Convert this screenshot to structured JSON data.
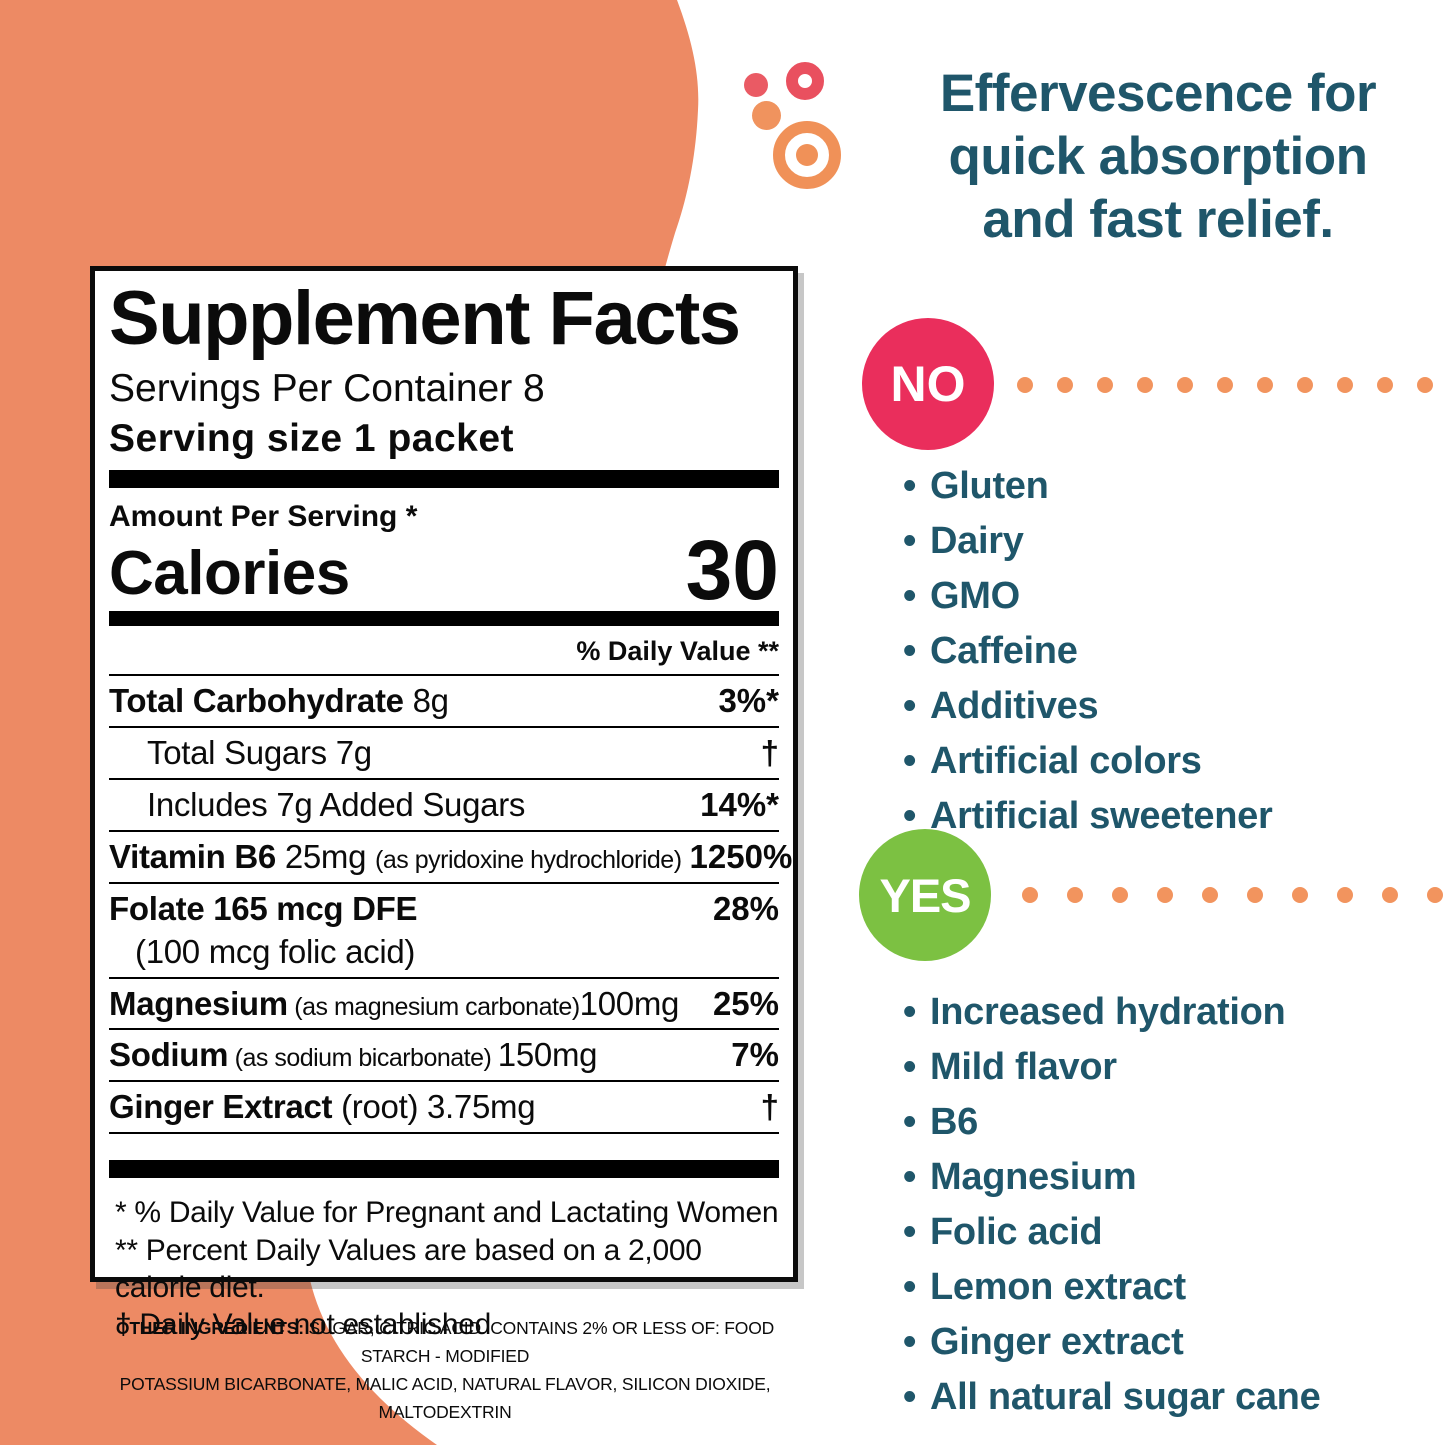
{
  "headline": {
    "lines": [
      "Effervescence for",
      "quick absorption",
      "and fast relief."
    ]
  },
  "no_section": {
    "badge": "NO",
    "items": [
      "Gluten",
      "Dairy",
      "GMO",
      "Caffeine",
      "Additives",
      "Artificial colors",
      "Artificial sweetener"
    ]
  },
  "yes_section": {
    "badge": "YES",
    "items": [
      "Increased hydration",
      "Mild flavor",
      "B6",
      "Magnesium",
      "Folic acid",
      "Lemon extract",
      "Ginger extract",
      "All natural sugar cane"
    ]
  },
  "label": {
    "title": "Supplement Facts",
    "servings_per_container": "Servings Per Container 8",
    "serving_size": "Serving size 1 packet",
    "amount_per_serving": "Amount Per Serving *",
    "calories_label": "Calories",
    "calories_value": "30",
    "daily_value_header": "% Daily Value **",
    "rows": [
      {
        "parts": [
          {
            "t": "Total Carbohydrate",
            "b": 1
          },
          {
            "t": " 8g"
          }
        ],
        "dv": "3%*"
      },
      {
        "parts": [
          {
            "t": "Total Sugars 7g"
          }
        ],
        "dv": "†",
        "indent": 1
      },
      {
        "parts": [
          {
            "t": "Includes 7g Added Sugars"
          }
        ],
        "dv": "14%*",
        "indent": 1
      },
      {
        "parts": [
          {
            "t": "Vitamin B6",
            "b": 1
          },
          {
            "t": " 25mg "
          },
          {
            "t": "(as pyridoxine hydrochloride)",
            "s": 1
          }
        ],
        "dv": "1250%"
      },
      {
        "parts": [
          {
            "t": "Folate 165 mcg DFE",
            "b": 1
          }
        ],
        "line2": "(100 mcg folic acid)",
        "dv": "28%"
      },
      {
        "parts": [
          {
            "t": "Magnesium",
            "b": 1
          },
          {
            "t": " (as magnesium carbonate)",
            "s": 1
          },
          {
            "t": "100mg"
          }
        ],
        "dv": "25%"
      },
      {
        "parts": [
          {
            "t": "Sodium",
            "b": 1
          },
          {
            "t": " (as sodium bicarbonate) ",
            "s": 1
          },
          {
            "t": "150mg"
          }
        ],
        "dv": "7%"
      },
      {
        "parts": [
          {
            "t": "Ginger Extract",
            "b": 1
          },
          {
            "t": " (root) 3.75mg"
          }
        ],
        "dv": "†"
      }
    ],
    "footnotes": [
      "* % Daily Value for Pregnant and Lactating Women",
      "** Percent Daily Values are based on a 2,000 calorie diet.",
      "† Daily Value not established"
    ]
  },
  "other_ingredients": {
    "label": "OTHER INGREDIENTS:",
    "line1": " SUGAR, CITRIC ACID. CONTAINS 2% OR LESS OF: FOOD STARCH - MODIFIED",
    "line2": "POTASSIUM BICARBONATE, MALIC ACID, NATURAL FLAVOR, SILICON DIOXIDE, MALTODEXTRIN"
  },
  "decor": {
    "no_dots": 11,
    "yes_dots": 10
  },
  "colors": {
    "blob_orange": "#ed8a64",
    "separator_dot_orange": "#f2945e",
    "badge_no_pink": "#ea2e5c",
    "badge_yes_green": "#7cc142",
    "text_teal": "#1f566a",
    "cluster_red": "#ea5a64",
    "cluster_orange": "#f09158"
  }
}
